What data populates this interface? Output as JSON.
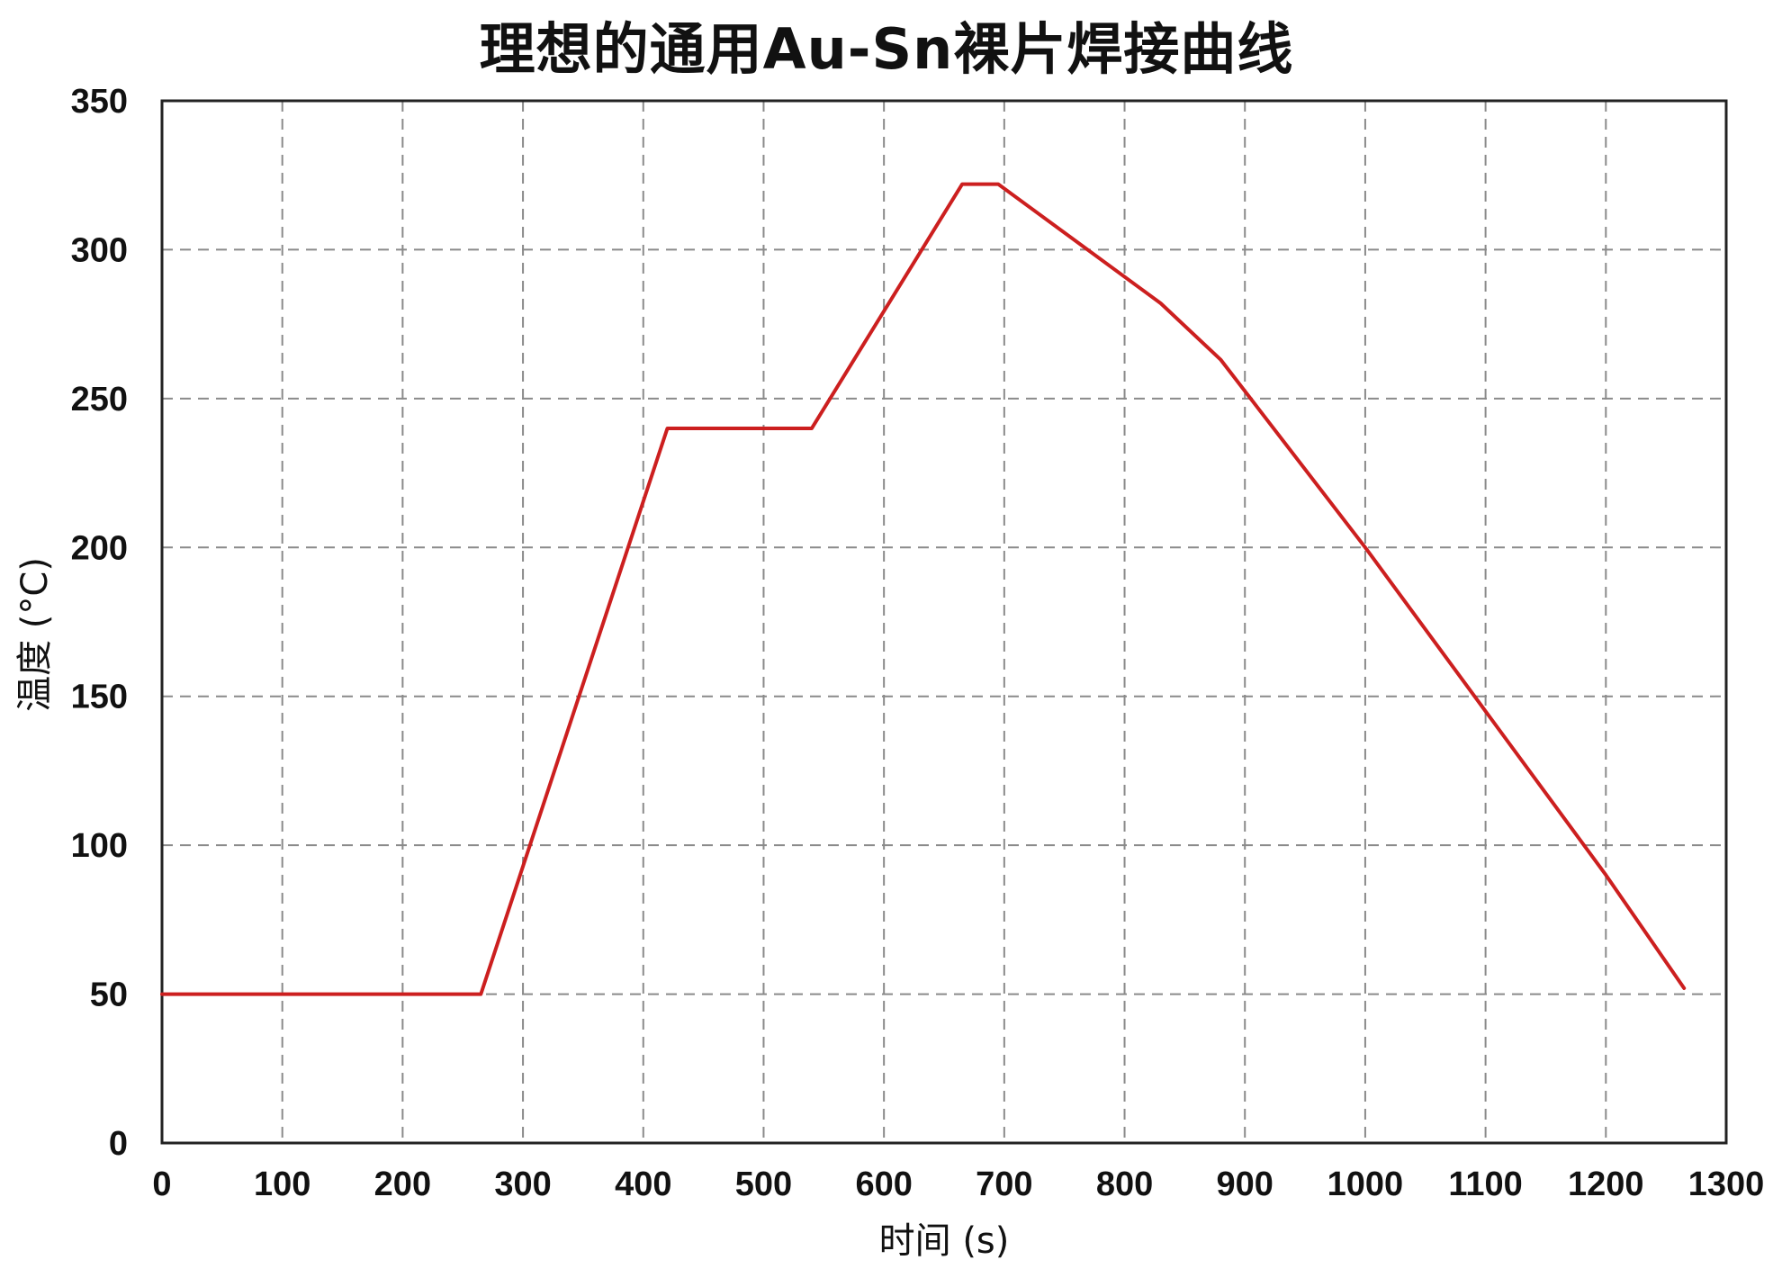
{
  "chart_data": {
    "type": "line",
    "title": "理想的通用Au-Sn裸片焊接曲线",
    "xlabel": "时间 (s)",
    "ylabel": "温度 (°C)",
    "xlim": [
      0,
      1300
    ],
    "ylim": [
      0,
      350
    ],
    "xticks": [
      0,
      100,
      200,
      300,
      400,
      500,
      600,
      700,
      800,
      900,
      1000,
      1100,
      1200,
      1300
    ],
    "yticks": [
      0,
      50,
      100,
      150,
      200,
      250,
      300,
      350
    ],
    "grid": true,
    "series": [
      {
        "color": "#cc1f1f",
        "x": [
          0,
          265,
          420,
          540,
          665,
          695,
          830,
          880,
          1000,
          1100,
          1200,
          1265
        ],
        "y": [
          50,
          50,
          240,
          240,
          322,
          322,
          282,
          263,
          200,
          145,
          90,
          52
        ]
      }
    ]
  }
}
